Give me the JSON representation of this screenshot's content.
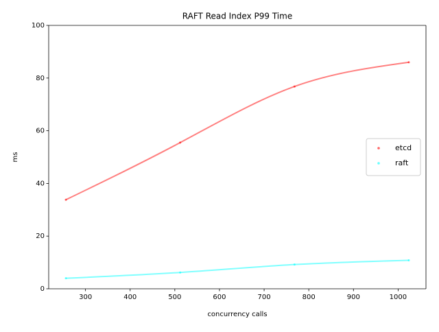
{
  "chart_data": {
    "type": "line",
    "title": "RAFT Read Index P99 Time",
    "x_label": "concurrency calls",
    "y_label": "ms",
    "x": [
      256,
      512,
      768,
      1024
    ],
    "series": [
      {
        "name": "etcd",
        "color": "#ff0000",
        "values": [
          33.8,
          55.5,
          76.8,
          86.0
        ]
      },
      {
        "name": "raft",
        "color": "#00ffff",
        "values": [
          4.0,
          6.2,
          9.2,
          10.8
        ]
      }
    ],
    "xlim": [
      217.6,
      1062.4
    ],
    "xticks": [
      300,
      400,
      500,
      600,
      700,
      800,
      900,
      1000
    ],
    "ylim": [
      0,
      100
    ],
    "yticks": [
      0,
      20,
      40,
      60,
      80,
      100
    ],
    "legend": "center right",
    "grid": false
  }
}
